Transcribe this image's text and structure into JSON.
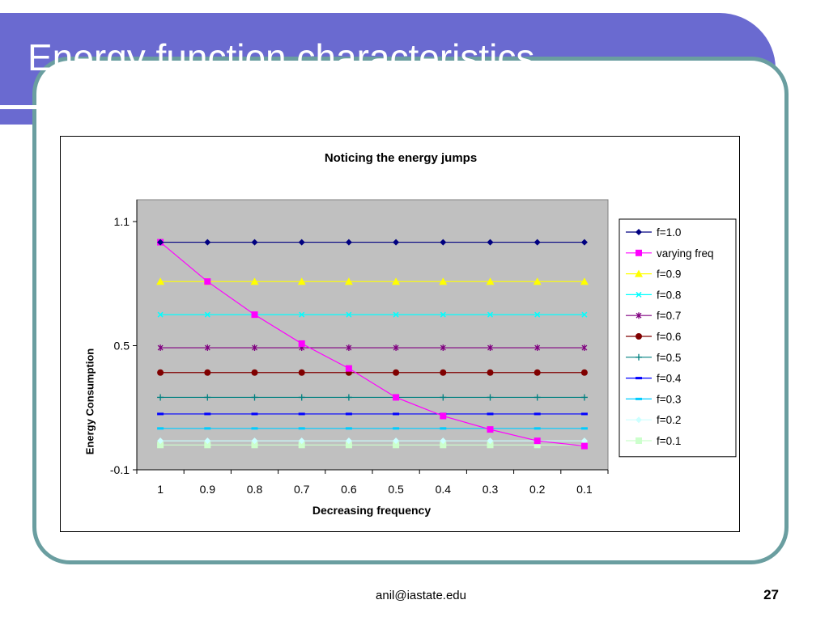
{
  "slide": {
    "title": "Energy function characteristics",
    "footer_email": "anil@iastate.edu",
    "page_number": "27"
  },
  "chart_data": {
    "type": "line",
    "title": "Noticing the energy jumps",
    "xlabel": "Decreasing frequency",
    "ylabel": "Energy Consumption",
    "categories": [
      "1",
      "0.9",
      "0.8",
      "0.7",
      "0.6",
      "0.5",
      "0.4",
      "0.3",
      "0.2",
      "0.1"
    ],
    "y_ticks": [
      "1.1",
      "0.5",
      "-0.1"
    ],
    "y_tick_values": [
      1.1,
      0.5,
      -0.1
    ],
    "ylim": [
      -0.1,
      1.1
    ],
    "grid": false,
    "plot_background": "#c0c0c0",
    "legend_position": "right",
    "series": [
      {
        "name": "f=1.0",
        "color": "#000080",
        "marker": "diamond",
        "values": [
          1.0,
          1.0,
          1.0,
          1.0,
          1.0,
          1.0,
          1.0,
          1.0,
          1.0,
          1.0
        ]
      },
      {
        "name": "varying freq",
        "color": "#ff00ff",
        "marker": "square",
        "values": [
          1.0,
          0.81,
          0.65,
          0.51,
          0.39,
          0.25,
          0.16,
          0.095,
          0.04,
          0.015
        ]
      },
      {
        "name": "f=0.9",
        "color": "#ffff00",
        "marker": "triangle",
        "values": [
          0.81,
          0.81,
          0.81,
          0.81,
          0.81,
          0.81,
          0.81,
          0.81,
          0.81,
          0.81
        ]
      },
      {
        "name": "f=0.8",
        "color": "#00ffff",
        "marker": "x",
        "values": [
          0.65,
          0.65,
          0.65,
          0.65,
          0.65,
          0.65,
          0.65,
          0.65,
          0.65,
          0.65
        ]
      },
      {
        "name": "f=0.7",
        "color": "#800080",
        "marker": "star",
        "values": [
          0.49,
          0.49,
          0.49,
          0.49,
          0.49,
          0.49,
          0.49,
          0.49,
          0.49,
          0.49
        ]
      },
      {
        "name": "f=0.6",
        "color": "#800000",
        "marker": "circle",
        "values": [
          0.37,
          0.37,
          0.37,
          0.37,
          0.37,
          0.37,
          0.37,
          0.37,
          0.37,
          0.37
        ]
      },
      {
        "name": "f=0.5",
        "color": "#008080",
        "marker": "plus",
        "values": [
          0.25,
          0.25,
          0.25,
          0.25,
          0.25,
          0.25,
          0.25,
          0.25,
          0.25,
          0.25
        ]
      },
      {
        "name": "f=0.4",
        "color": "#0000ff",
        "marker": "dash",
        "values": [
          0.17,
          0.17,
          0.17,
          0.17,
          0.17,
          0.17,
          0.17,
          0.17,
          0.17,
          0.17
        ]
      },
      {
        "name": "f=0.3",
        "color": "#00ccff",
        "marker": "dash",
        "values": [
          0.1,
          0.1,
          0.1,
          0.1,
          0.1,
          0.1,
          0.1,
          0.1,
          0.1,
          0.1
        ]
      },
      {
        "name": "f=0.2",
        "color": "#ccffff",
        "marker": "diamond",
        "values": [
          0.04,
          0.04,
          0.04,
          0.04,
          0.04,
          0.04,
          0.04,
          0.04,
          0.04,
          0.04
        ]
      },
      {
        "name": "f=0.1",
        "color": "#ccffcc",
        "marker": "square",
        "values": [
          0.02,
          0.02,
          0.02,
          0.02,
          0.02,
          0.02,
          0.02,
          0.02,
          0.02,
          0.02
        ]
      }
    ]
  }
}
